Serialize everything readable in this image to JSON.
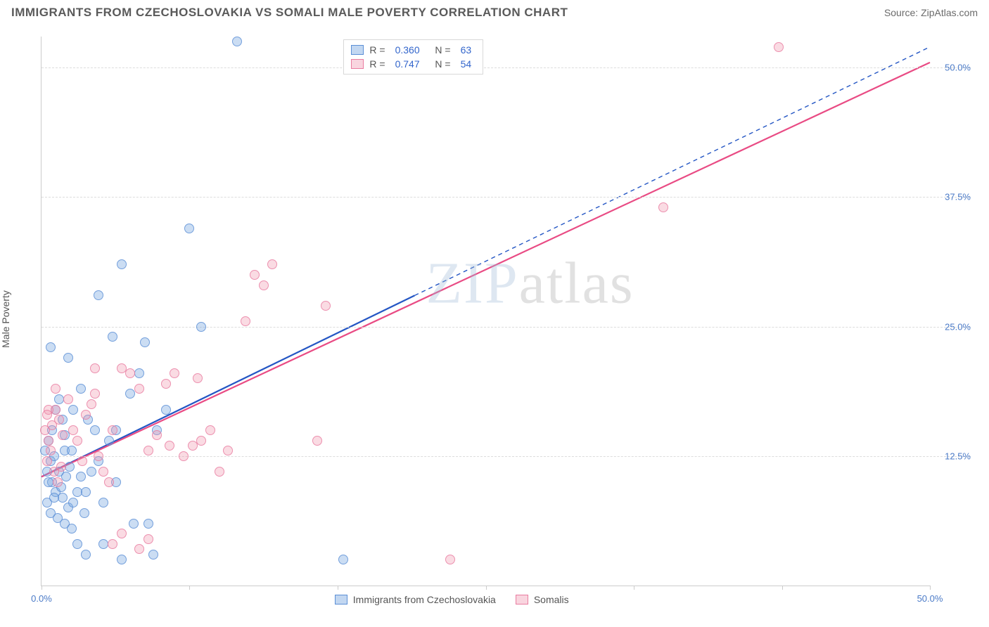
{
  "header": {
    "title": "IMMIGRANTS FROM CZECHOSLOVAKIA VS SOMALI MALE POVERTY CORRELATION CHART",
    "source": "Source: ZipAtlas.com"
  },
  "ylabel": "Male Poverty",
  "watermark": {
    "bold": "ZIP",
    "light": "atlas"
  },
  "axes": {
    "xmin": 0,
    "xmax": 50,
    "ymin": 0,
    "ymax": 53,
    "xticks": [
      0,
      8.33,
      16.67,
      25,
      33.33,
      41.67,
      50
    ],
    "xlabels_visible": [
      {
        "v": 0,
        "t": "0.0%"
      },
      {
        "v": 50,
        "t": "50.0%"
      }
    ],
    "yticks": [
      12.5,
      25,
      37.5,
      50
    ],
    "ylabels": [
      "12.5%",
      "25.0%",
      "37.5%",
      "50.0%"
    ]
  },
  "series": [
    {
      "id": "a",
      "name": "Immigrants from Czechoslovakia",
      "color": "#5b8fd6",
      "fill": "rgba(120,166,224,0.45)",
      "R": "0.360",
      "N": "63",
      "trend": {
        "x1": 0,
        "y1": 10.5,
        "x2_solid": 21,
        "y2_solid": 28,
        "x2": 50,
        "y2": 52
      },
      "points": [
        [
          0.5,
          12
        ],
        [
          0.6,
          10
        ],
        [
          0.8,
          9
        ],
        [
          1,
          11
        ],
        [
          1.2,
          8.5
        ],
        [
          1.3,
          13
        ],
        [
          1.5,
          7.5
        ],
        [
          1.4,
          10.5
        ],
        [
          0.4,
          14
        ],
        [
          0.7,
          12.5
        ],
        [
          1.1,
          9.5
        ],
        [
          1.6,
          11.5
        ],
        [
          1.8,
          8
        ],
        [
          2,
          9
        ],
        [
          2.2,
          10.5
        ],
        [
          2.4,
          7
        ],
        [
          0.3,
          8
        ],
        [
          0.5,
          7
        ],
        [
          0.9,
          6.5
        ],
        [
          1.3,
          6
        ],
        [
          1.7,
          5.5
        ],
        [
          2,
          4
        ],
        [
          2.5,
          9
        ],
        [
          2.8,
          11
        ],
        [
          3,
          15
        ],
        [
          3.2,
          28
        ],
        [
          3.5,
          8
        ],
        [
          4,
          24
        ],
        [
          4.2,
          10
        ],
        [
          4.5,
          31
        ],
        [
          5,
          18.5
        ],
        [
          5.5,
          20.5
        ],
        [
          5.8,
          23.5
        ],
        [
          6,
          6
        ],
        [
          6.5,
          15
        ],
        [
          7,
          17
        ],
        [
          8.3,
          34.5
        ],
        [
          9,
          25
        ],
        [
          11,
          52.5
        ],
        [
          2.5,
          3
        ],
        [
          3.5,
          4
        ],
        [
          4.5,
          2.5
        ],
        [
          5.2,
          6
        ],
        [
          6.3,
          3
        ],
        [
          1.5,
          22
        ],
        [
          1.2,
          16
        ],
        [
          0.5,
          23
        ],
        [
          1.8,
          17
        ],
        [
          1,
          18
        ],
        [
          2.2,
          19
        ],
        [
          2.6,
          16
        ],
        [
          3.2,
          12
        ],
        [
          3.8,
          14
        ],
        [
          4.2,
          15
        ],
        [
          0.3,
          11
        ],
        [
          0.2,
          13
        ],
        [
          0.6,
          15
        ],
        [
          0.8,
          17
        ],
        [
          1.3,
          14.5
        ],
        [
          1.7,
          13
        ],
        [
          17,
          2.5
        ],
        [
          0.4,
          10
        ],
        [
          0.7,
          8.5
        ]
      ]
    },
    {
      "id": "b",
      "name": "Somalis",
      "color": "#e97ca0",
      "fill": "rgba(240,150,175,0.4)",
      "R": "0.747",
      "N": "54",
      "trend": {
        "x1": 0,
        "y1": 10.5,
        "x2_solid": 50,
        "y2_solid": 50.5,
        "x2": 50,
        "y2": 50.5
      },
      "points": [
        [
          0.4,
          14
        ],
        [
          0.6,
          15.5
        ],
        [
          0.8,
          17
        ],
        [
          1,
          16
        ],
        [
          1.2,
          14.5
        ],
        [
          1.5,
          18
        ],
        [
          1.8,
          15
        ],
        [
          2,
          14
        ],
        [
          2.3,
          12
        ],
        [
          2.5,
          16.5
        ],
        [
          2.8,
          17.5
        ],
        [
          3,
          18.5
        ],
        [
          3.2,
          12.5
        ],
        [
          3.5,
          11
        ],
        [
          3.8,
          10
        ],
        [
          4,
          15
        ],
        [
          4.5,
          21
        ],
        [
          5,
          20.5
        ],
        [
          5.5,
          19
        ],
        [
          6,
          13
        ],
        [
          6.5,
          14.5
        ],
        [
          7,
          19.5
        ],
        [
          7.5,
          20.5
        ],
        [
          8,
          12.5
        ],
        [
          8.5,
          13.5
        ],
        [
          9,
          14
        ],
        [
          9.5,
          15
        ],
        [
          10,
          11
        ],
        [
          10.5,
          13
        ],
        [
          11.5,
          25.5
        ],
        [
          12,
          30
        ],
        [
          12.5,
          29
        ],
        [
          13,
          31
        ],
        [
          15.5,
          14
        ],
        [
          16,
          27
        ],
        [
          23,
          2.5
        ],
        [
          35,
          36.5
        ],
        [
          41.5,
          52
        ],
        [
          0.3,
          12
        ],
        [
          0.5,
          13
        ],
        [
          0.7,
          11
        ],
        [
          0.9,
          10
        ],
        [
          1.1,
          11.5
        ],
        [
          0.4,
          17
        ],
        [
          0.8,
          19
        ],
        [
          4,
          4
        ],
        [
          4.5,
          5
        ],
        [
          6,
          4.5
        ],
        [
          0.2,
          15
        ],
        [
          0.3,
          16.5
        ],
        [
          5.5,
          3.5
        ],
        [
          7.2,
          13.5
        ],
        [
          8.8,
          20
        ],
        [
          3,
          21
        ]
      ]
    }
  ],
  "legend_bottom": [
    {
      "series": "a",
      "label": "Immigrants from Czechoslovakia"
    },
    {
      "series": "b",
      "label": "Somalis"
    }
  ]
}
